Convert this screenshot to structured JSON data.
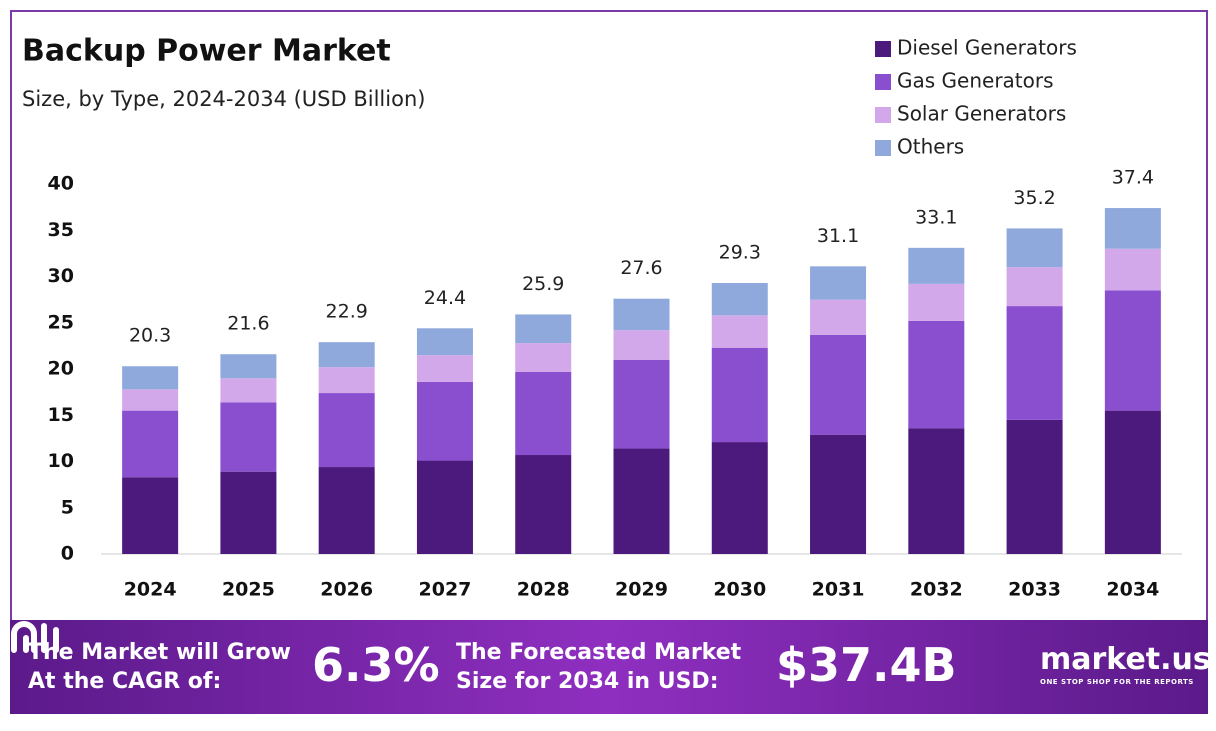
{
  "chart_data": {
    "type": "stacked-bar",
    "title": "Backup Power Market",
    "subtitle": "Size, by Type, 2024-2034 (USD Billion)",
    "categories": [
      "2024",
      "2025",
      "2026",
      "2027",
      "2028",
      "2029",
      "2030",
      "2031",
      "2032",
      "2033",
      "2034"
    ],
    "series": [
      {
        "name": "Diesel Generators",
        "color": "#4b1a7c",
        "values": [
          8.3,
          8.9,
          9.4,
          10.1,
          10.7,
          11.4,
          12.1,
          12.9,
          13.6,
          14.5,
          15.5
        ]
      },
      {
        "name": "Gas Generators",
        "color": "#8a4fcf",
        "values": [
          7.2,
          7.5,
          8.0,
          8.5,
          9.0,
          9.6,
          10.2,
          10.8,
          11.6,
          12.3,
          13.0
        ]
      },
      {
        "name": "Solar Generators",
        "color": "#d3a8ea",
        "values": [
          2.3,
          2.6,
          2.8,
          2.9,
          3.1,
          3.2,
          3.5,
          3.8,
          4.0,
          4.2,
          4.5
        ]
      },
      {
        "name": "Others",
        "color": "#8fa9dc",
        "values": [
          2.5,
          2.6,
          2.7,
          2.9,
          3.1,
          3.4,
          3.5,
          3.6,
          3.9,
          4.2,
          4.4
        ]
      }
    ],
    "totals": [
      20.3,
      21.6,
      22.9,
      24.4,
      25.9,
      27.6,
      29.3,
      31.1,
      33.1,
      35.2,
      37.4
    ],
    "ylim": [
      0,
      40
    ],
    "yticks": [
      0,
      5,
      10,
      15,
      20,
      25,
      30,
      35,
      40
    ],
    "grid": false,
    "legend": "top-right"
  },
  "footer": {
    "cagr_text": [
      "The Market will Grow",
      "At the CAGR of:"
    ],
    "cagr_value": "6.3%",
    "forecast_text": [
      "The Forecasted Market",
      "Size for 2034 in USD:"
    ],
    "forecast_value": "$37.4B",
    "brand": "market.us",
    "tagline": "ONE STOP SHOP FOR THE REPORTS"
  }
}
